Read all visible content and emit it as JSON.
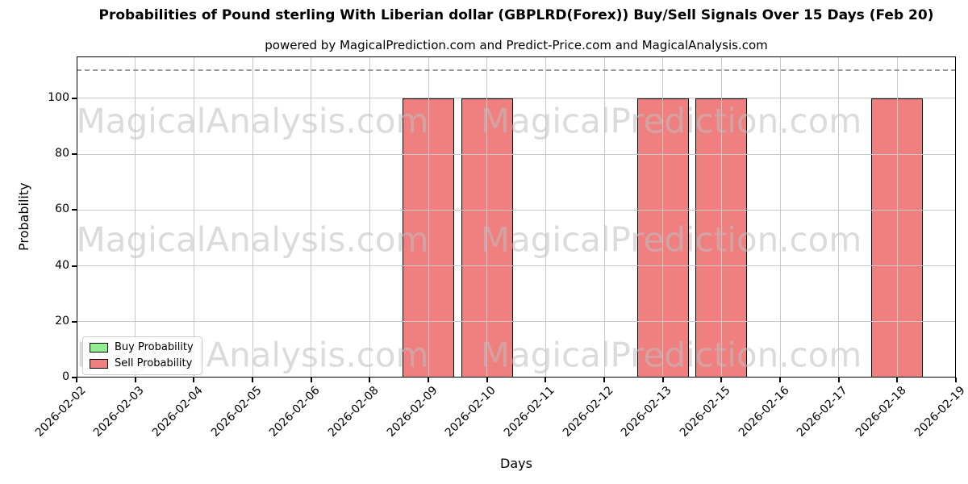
{
  "chart_data": {
    "type": "bar",
    "title": "Probabilities of Pound sterling With Liberian dollar (GBPLRD(Forex)) Buy/Sell Signals Over 15 Days (Feb 20)",
    "subtitle": "powered by MagicalPrediction.com and Predict-Price.com and MagicalAnalysis.com",
    "xlabel": "Days",
    "ylabel": "Probability",
    "categories": [
      "2026-02-02",
      "2026-02-03",
      "2026-02-04",
      "2026-02-05",
      "2026-02-06",
      "2026-02-08",
      "2026-02-09",
      "2026-02-10",
      "2026-02-11",
      "2026-02-12",
      "2026-02-13",
      "2026-02-15",
      "2026-02-16",
      "2026-02-17",
      "2026-02-18",
      "2026-02-19"
    ],
    "series": [
      {
        "name": "Buy Probability",
        "color": "#90ee90",
        "values": [
          0,
          0,
          0,
          0,
          0,
          0,
          0,
          0,
          0,
          0,
          0,
          0,
          0,
          0,
          0,
          0
        ]
      },
      {
        "name": "Sell Probability",
        "color": "#f08080",
        "values": [
          0,
          0,
          0,
          0,
          0,
          0,
          100,
          100,
          0,
          0,
          100,
          100,
          0,
          0,
          100,
          0
        ]
      }
    ],
    "ylim": [
      0,
      115
    ],
    "yticks": [
      0,
      20,
      40,
      60,
      80,
      100
    ],
    "grid": true,
    "legend_position": "lower-left",
    "threshold_line": {
      "value": 110,
      "style": "dashed",
      "color": "#999999"
    },
    "watermarks": [
      "MagicalAnalysis.com",
      "MagicalPrediction.com"
    ],
    "bar_edge_color": "#000000"
  }
}
